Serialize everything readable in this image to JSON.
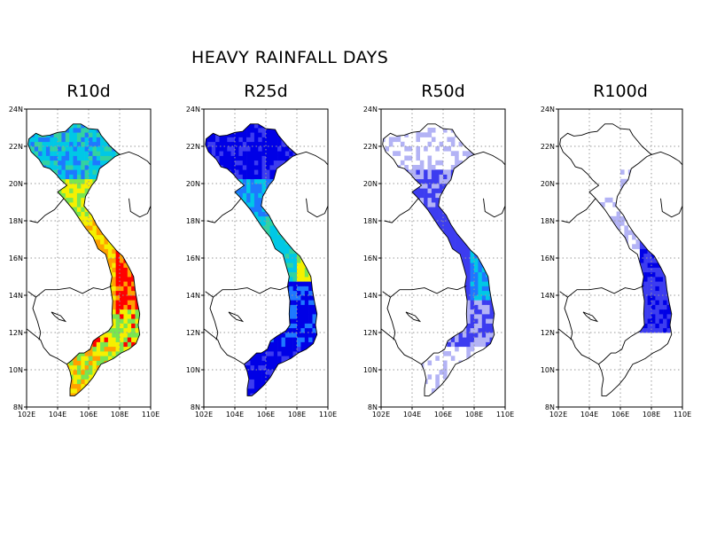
{
  "figure": {
    "title": "HEAVY RAINFALL DAYS"
  },
  "panels": [
    {
      "id": "r10",
      "title": "R10d",
      "palette": "high"
    },
    {
      "id": "r25",
      "title": "R25d",
      "palette": "mid"
    },
    {
      "id": "r50",
      "title": "R50d",
      "palette": "low"
    },
    {
      "id": "r100",
      "title": "R100d",
      "palette": "vlow"
    }
  ],
  "axes": {
    "lon_range": [
      102,
      110
    ],
    "lat_range": [
      8,
      24
    ],
    "lon_ticks": [
      "102E",
      "104E",
      "106E",
      "108E",
      "110E"
    ],
    "lat_ticks": [
      "8N",
      "10N",
      "12N",
      "14N",
      "16N",
      "18N",
      "20N",
      "22N",
      "24N"
    ],
    "grid": "dotted"
  },
  "colors": {
    "lavender": "#b3b3f5",
    "royal_blue": "#3c3cf0",
    "blue": "#0000e6",
    "azure": "#1e78ff",
    "cyan": "#00c8e6",
    "teal_green": "#32d2a0",
    "green": "#78e650",
    "yellow": "#f5f000",
    "orange": "#ffa000",
    "red": "#ff0000"
  }
}
